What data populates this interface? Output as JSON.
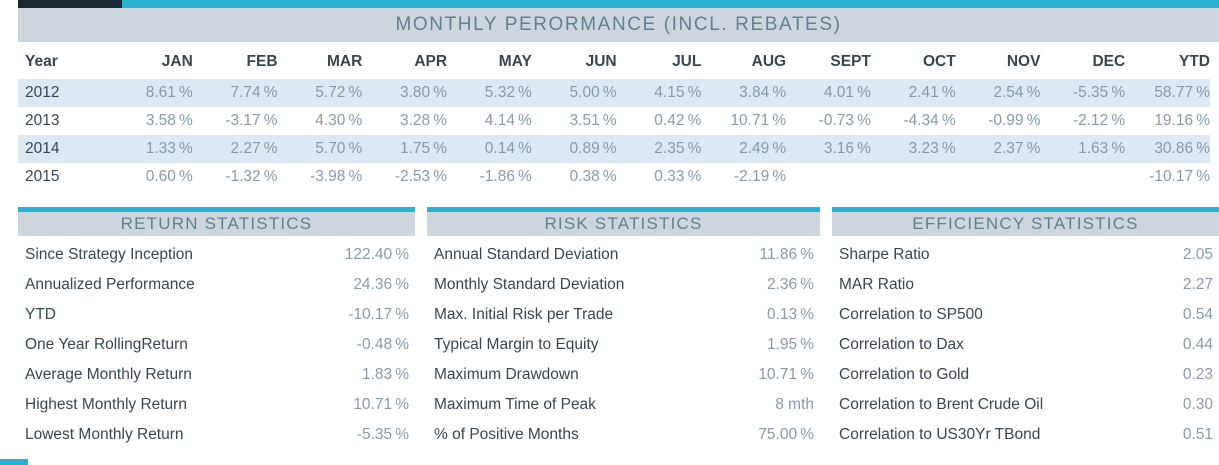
{
  "header": {
    "title": "MONTHLY PERORMANCE (INCL. REBATES)"
  },
  "monthly_table": {
    "columns": [
      "Year",
      "JAN",
      "FEB",
      "MAR",
      "APR",
      "MAY",
      "JUN",
      "JUL",
      "AUG",
      "SEPT",
      "OCT",
      "NOV",
      "DEC",
      "YTD"
    ],
    "rows": [
      {
        "year": "2012",
        "values": [
          "8.61 %",
          "7.74 %",
          "5.72 %",
          "3.80 %",
          "5.32 %",
          "5.00 %",
          "4.15 %",
          "3.84 %",
          "4.01 %",
          "2.41 %",
          "2.54 %",
          "-5.35 %",
          "58.77 %"
        ]
      },
      {
        "year": "2013",
        "values": [
          "3.58 %",
          "-3.17 %",
          "4.30 %",
          "3.28 %",
          "4.14 %",
          "3.51 %",
          "0.42 %",
          "10.71 %",
          "-0.73 %",
          "-4.34 %",
          "-0.99 %",
          "-2.12 %",
          "19.16 %"
        ]
      },
      {
        "year": "2014",
        "values": [
          "1.33 %",
          "2.27 %",
          "5.70 %",
          "1.75 %",
          "0.14 %",
          "0.89 %",
          "2.35 %",
          "2.49 %",
          "3.16 %",
          "3.23 %",
          "2.37 %",
          "1.63 %",
          "30.86 %"
        ]
      },
      {
        "year": "2015",
        "values": [
          "0.60 %",
          "-1.32 %",
          "-3.98 %",
          "-2.53 %",
          "-1.86 %",
          "0.38 %",
          "0.33 %",
          "-2.19 %",
          "",
          "",
          "",
          "",
          "-10.17 %"
        ]
      }
    ]
  },
  "sections": [
    {
      "title": "RETURN STATISTICS",
      "rows": [
        {
          "label": "Since Strategy Inception",
          "value": "122.40 %"
        },
        {
          "label": "Annualized Performance",
          "value": "24.36 %"
        },
        {
          "label": "YTD",
          "value": "-10.17 %"
        },
        {
          "label": "One Year RollingReturn",
          "value": "-0.48 %"
        },
        {
          "label": "Average Monthly Return",
          "value": "1.83 %"
        },
        {
          "label": "Highest Monthly Return",
          "value": "10.71 %"
        },
        {
          "label": "Lowest Monthly Return",
          "value": "-5.35 %"
        }
      ]
    },
    {
      "title": "RISK STATISTICS",
      "rows": [
        {
          "label": "Annual Standard Deviation",
          "value": "11.86 %"
        },
        {
          "label": "Monthly Standard Deviation",
          "value": "2.36 %"
        },
        {
          "label": "Max. Initial Risk per Trade",
          "value": "0.13 %"
        },
        {
          "label": "Typical Margin to Equity",
          "value": "1.95 %"
        },
        {
          "label": "Maximum Drawdown",
          "value": "10.71 %"
        },
        {
          "label": "Maximum Time of Peak",
          "value": "8 mth"
        },
        {
          "label": "% of Positive Months",
          "value": "75.00 %"
        }
      ]
    },
    {
      "title": "EFFICIENCY STATISTICS",
      "rows": [
        {
          "label": "Sharpe Ratio",
          "value": "2.05"
        },
        {
          "label": "MAR Ratio",
          "value": "2.27"
        },
        {
          "label": "Correlation to SP500",
          "value": "0.54"
        },
        {
          "label": "Correlation to Dax",
          "value": "0.44"
        },
        {
          "label": "Correlation to Gold",
          "value": "0.23"
        },
        {
          "label": "Correlation to Brent Crude Oil",
          "value": "0.30"
        },
        {
          "label": "Correlation to US30Yr TBond",
          "value": "0.51"
        }
      ]
    }
  ],
  "colors": {
    "accent": "#29b2d1",
    "header_band": "#ccd6dc",
    "row_stripe": "#dce9f4",
    "dark_segment": "#1d2a35",
    "label_text": "#3a4550",
    "value_text": "#8a99a9",
    "heading_text": "#64808e"
  }
}
